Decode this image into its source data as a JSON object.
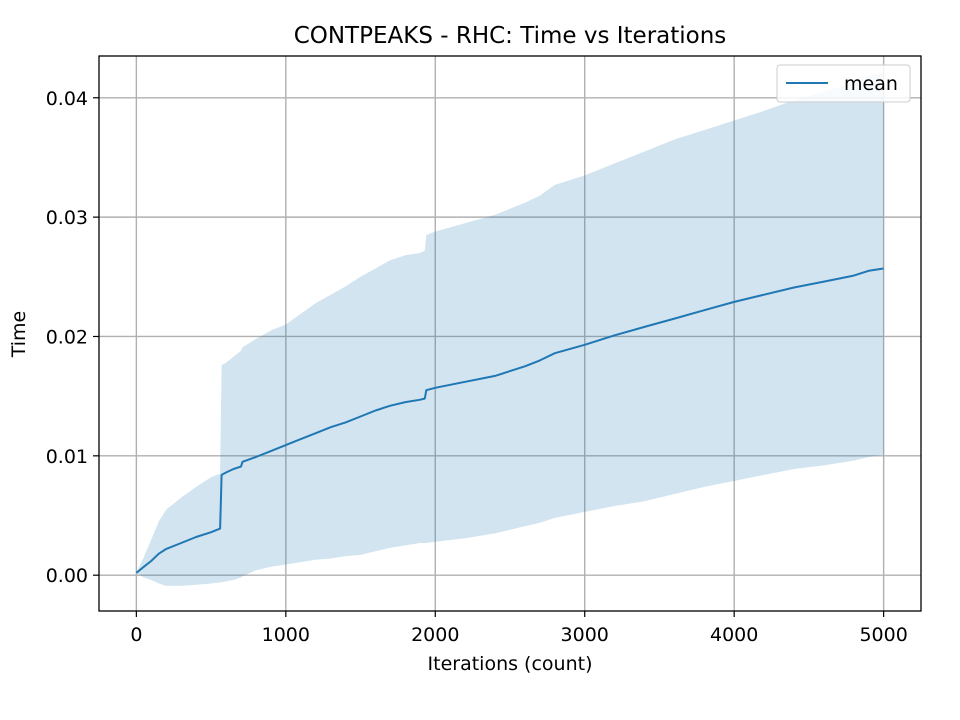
{
  "chart_data": {
    "type": "line",
    "title": "CONTPEAKS - RHC: Time vs Iterations",
    "xlabel": "Iterations (count)",
    "ylabel": "Time",
    "xlim": [
      -250,
      5250
    ],
    "ylim": [
      -0.003,
      0.0435
    ],
    "x_ticks": [
      0,
      1000,
      2000,
      3000,
      4000,
      5000
    ],
    "x_tick_labels": [
      "0",
      "1000",
      "2000",
      "3000",
      "4000",
      "5000"
    ],
    "y_ticks": [
      0.0,
      0.01,
      0.02,
      0.03,
      0.04
    ],
    "y_tick_labels": [
      "0.00",
      "0.01",
      "0.02",
      "0.03",
      "0.04"
    ],
    "grid": true,
    "legend_position": "top-right",
    "colors": {
      "line": "#1f77b4",
      "band": "#1f77b4"
    },
    "series": [
      {
        "name": "mean",
        "x": [
          0,
          50,
          100,
          150,
          200,
          300,
          400,
          500,
          560,
          570,
          600,
          650,
          700,
          710,
          800,
          900,
          1000,
          1100,
          1200,
          1300,
          1400,
          1500,
          1600,
          1700,
          1800,
          1900,
          1930,
          1940,
          2000,
          2200,
          2400,
          2500,
          2600,
          2700,
          2800,
          3000,
          3200,
          3400,
          3600,
          3800,
          4000,
          4200,
          4400,
          4600,
          4800,
          4900,
          5000
        ],
        "y": [
          0.0002,
          0.0007,
          0.0012,
          0.0018,
          0.0022,
          0.0027,
          0.0032,
          0.0036,
          0.0039,
          0.0084,
          0.0086,
          0.0089,
          0.0091,
          0.0095,
          0.0099,
          0.0104,
          0.0109,
          0.0114,
          0.0119,
          0.0124,
          0.0128,
          0.0133,
          0.0138,
          0.0142,
          0.0145,
          0.0147,
          0.0148,
          0.0155,
          0.0157,
          0.0162,
          0.0167,
          0.0171,
          0.0175,
          0.018,
          0.0186,
          0.0193,
          0.0201,
          0.0208,
          0.0215,
          0.0222,
          0.0229,
          0.0235,
          0.0241,
          0.0246,
          0.0251,
          0.0255,
          0.0257
        ],
        "upper": [
          0.0002,
          0.0015,
          0.003,
          0.0045,
          0.0055,
          0.0065,
          0.0074,
          0.0082,
          0.0085,
          0.0176,
          0.0178,
          0.0183,
          0.0188,
          0.0191,
          0.0198,
          0.0205,
          0.021,
          0.0219,
          0.0228,
          0.0235,
          0.0242,
          0.025,
          0.0257,
          0.0264,
          0.0268,
          0.027,
          0.0272,
          0.0285,
          0.0288,
          0.0295,
          0.0302,
          0.0307,
          0.0312,
          0.0318,
          0.0327,
          0.0335,
          0.0345,
          0.0355,
          0.0365,
          0.0373,
          0.0381,
          0.0389,
          0.0398,
          0.0405,
          0.0413,
          0.0418,
          0.0422
        ],
        "lower": [
          0.0002,
          -0.0002,
          -0.0004,
          -0.0007,
          -0.0009,
          -0.0009,
          -0.0008,
          -0.0007,
          -0.0006,
          -0.0006,
          -0.0005,
          -0.0004,
          -0.0002,
          -0.0001,
          0.0004,
          0.0007,
          0.0009,
          0.0011,
          0.0013,
          0.0014,
          0.0016,
          0.0017,
          0.002,
          0.0023,
          0.0025,
          0.0027,
          0.0027,
          0.0027,
          0.0028,
          0.0031,
          0.0035,
          0.0038,
          0.0041,
          0.0044,
          0.0048,
          0.0053,
          0.0058,
          0.0062,
          0.0068,
          0.0074,
          0.0079,
          0.0084,
          0.0089,
          0.0092,
          0.0096,
          0.0099,
          0.0101
        ]
      }
    ]
  }
}
